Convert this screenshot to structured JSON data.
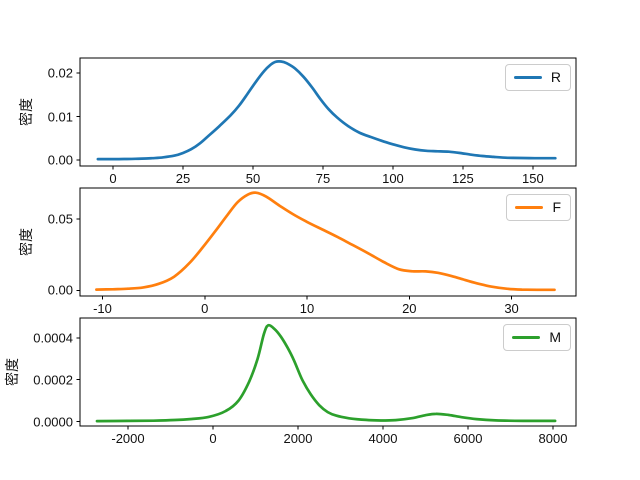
{
  "figure": {
    "background": "#ffffff",
    "axis_color": "#000000",
    "text_color": "#111111"
  },
  "chart_data": [
    {
      "type": "line",
      "subtype": "kde-density",
      "title": "",
      "xlabel": "",
      "ylabel": "密度",
      "legend": {
        "label": "R",
        "position": "upper right"
      },
      "xlim": [
        -11.8,
        165.4
      ],
      "ylim": [
        -0.0014,
        0.0235
      ],
      "grid": false,
      "xticks": {
        "values": [
          0,
          25,
          50,
          75,
          100,
          125,
          150
        ],
        "labels": [
          "0",
          "25",
          "50",
          "75",
          "100",
          "125",
          "150"
        ]
      },
      "yticks": {
        "values": [
          0,
          0.01,
          0.02
        ],
        "labels": [
          "0.00",
          "0.01",
          "0.02"
        ]
      },
      "series": [
        {
          "name": "R",
          "color": "#1f77b4",
          "points": [
            [
              -5.4,
              0.0002
            ],
            [
              2,
              0.0002
            ],
            [
              8,
              0.00025
            ],
            [
              14,
              0.0004
            ],
            [
              18,
              0.0006
            ],
            [
              22,
              0.001
            ],
            [
              25,
              0.0016
            ],
            [
              28,
              0.0025
            ],
            [
              31,
              0.0038
            ],
            [
              34,
              0.0055
            ],
            [
              38,
              0.0078
            ],
            [
              42,
              0.0103
            ],
            [
              45,
              0.0125
            ],
            [
              48,
              0.0152
            ],
            [
              51,
              0.018
            ],
            [
              54,
              0.0205
            ],
            [
              56,
              0.0218
            ],
            [
              58,
              0.0226
            ],
            [
              60,
              0.0227
            ],
            [
              62,
              0.0223
            ],
            [
              65,
              0.0211
            ],
            [
              68,
              0.0192
            ],
            [
              71,
              0.0168
            ],
            [
              74,
              0.0141
            ],
            [
              77,
              0.0117
            ],
            [
              80,
              0.0098
            ],
            [
              84,
              0.0078
            ],
            [
              88,
              0.0063
            ],
            [
              92,
              0.0053
            ],
            [
              96,
              0.0044
            ],
            [
              100,
              0.0036
            ],
            [
              104,
              0.0029
            ],
            [
              108,
              0.0024
            ],
            [
              112,
              0.0021
            ],
            [
              116,
              0.002
            ],
            [
              120,
              0.0019
            ],
            [
              124,
              0.0016
            ],
            [
              128,
              0.0012
            ],
            [
              132,
              0.0009
            ],
            [
              136,
              0.0007
            ],
            [
              141,
              0.0005
            ],
            [
              146,
              0.00045
            ],
            [
              152,
              0.0004
            ],
            [
              158,
              0.0004
            ]
          ]
        }
      ]
    },
    {
      "type": "line",
      "subtype": "kde-density",
      "title": "",
      "xlabel": "",
      "ylabel": "密度",
      "legend": {
        "label": "F",
        "position": "upper right"
      },
      "xlim": [
        -12.2,
        36.3
      ],
      "ylim": [
        -0.004,
        0.0715
      ],
      "grid": false,
      "xticks": {
        "values": [
          -10,
          0,
          10,
          20,
          30
        ],
        "labels": [
          "-10",
          "0",
          "10",
          "20",
          "30"
        ]
      },
      "yticks": {
        "values": [
          0,
          0.05
        ],
        "labels": [
          "0.00",
          "0.05"
        ]
      },
      "series": [
        {
          "name": "F",
          "color": "#ff7f0e",
          "points": [
            [
              -10.6,
              0.0005
            ],
            [
              -9,
              0.0007
            ],
            [
              -7.5,
              0.0011
            ],
            [
              -6,
              0.002
            ],
            [
              -4.5,
              0.0045
            ],
            [
              -3,
              0.0095
            ],
            [
              -1.5,
              0.019
            ],
            [
              -0.2,
              0.03
            ],
            [
              1,
              0.041
            ],
            [
              2.2,
              0.0525
            ],
            [
              3.2,
              0.0615
            ],
            [
              4.2,
              0.0668
            ],
            [
              5,
              0.0682
            ],
            [
              6,
              0.0655
            ],
            [
              7.3,
              0.0592
            ],
            [
              8.6,
              0.0533
            ],
            [
              10,
              0.0478
            ],
            [
              11.5,
              0.0425
            ],
            [
              13,
              0.0372
            ],
            [
              14.5,
              0.0315
            ],
            [
              16,
              0.0258
            ],
            [
              17.5,
              0.0198
            ],
            [
              19,
              0.0147
            ],
            [
              20.3,
              0.0133
            ],
            [
              21.6,
              0.0132
            ],
            [
              22.8,
              0.0122
            ],
            [
              24,
              0.0102
            ],
            [
              25.3,
              0.0075
            ],
            [
              26.6,
              0.0049
            ],
            [
              28,
              0.0026
            ],
            [
              29.5,
              0.0011
            ],
            [
              31,
              0.0005
            ],
            [
              32.5,
              0.00035
            ],
            [
              34.2,
              0.0003
            ]
          ]
        }
      ]
    },
    {
      "type": "line",
      "subtype": "kde-density",
      "title": "",
      "xlabel": "",
      "ylabel": "密度",
      "legend": {
        "label": "M",
        "position": "upper right"
      },
      "xlim": [
        -3129,
        8541
      ],
      "ylim": [
        -2.15e-05,
        0.000495
      ],
      "grid": false,
      "xticks": {
        "values": [
          -2000,
          0,
          2000,
          4000,
          6000,
          8000
        ],
        "labels": [
          "-2000",
          "0",
          "2000",
          "4000",
          "6000",
          "8000"
        ]
      },
      "yticks": {
        "values": [
          0,
          0.0002,
          0.0004
        ],
        "labels": [
          "0.0000",
          "0.0002",
          "0.0004"
        ]
      },
      "series": [
        {
          "name": "M",
          "color": "#2ca02c",
          "points": [
            [
              -2730,
              2e-06
            ],
            [
              -2000,
              3e-06
            ],
            [
              -1400,
              4e-06
            ],
            [
              -900,
              7e-06
            ],
            [
              -500,
              1.2e-05
            ],
            [
              -100,
              2.2e-05
            ],
            [
              300,
              5e-05
            ],
            [
              600,
              0.0001
            ],
            [
              850,
              0.00019
            ],
            [
              1050,
              0.0003
            ],
            [
              1200,
              0.00042
            ],
            [
              1300,
              0.00046
            ],
            [
              1450,
              0.000442
            ],
            [
              1600,
              0.000405
            ],
            [
              1750,
              0.000355
            ],
            [
              1900,
              0.000295
            ],
            [
              2100,
              0.0002
            ],
            [
              2300,
              0.00013
            ],
            [
              2500,
              7.8e-05
            ],
            [
              2700,
              4.5e-05
            ],
            [
              2900,
              2.8e-05
            ],
            [
              3200,
              1.55e-05
            ],
            [
              3600,
              7.5e-06
            ],
            [
              3950,
              5e-06
            ],
            [
              4300,
              6.8e-06
            ],
            [
              4700,
              1.65e-05
            ],
            [
              5000,
              3e-05
            ],
            [
              5250,
              3.65e-05
            ],
            [
              5550,
              3.1e-05
            ],
            [
              5850,
              2.05e-05
            ],
            [
              6200,
              1.15e-05
            ],
            [
              6650,
              5.5e-06
            ],
            [
              7100,
              3.5e-06
            ],
            [
              7600,
              3e-06
            ],
            [
              8050,
              3e-06
            ]
          ]
        }
      ]
    }
  ]
}
